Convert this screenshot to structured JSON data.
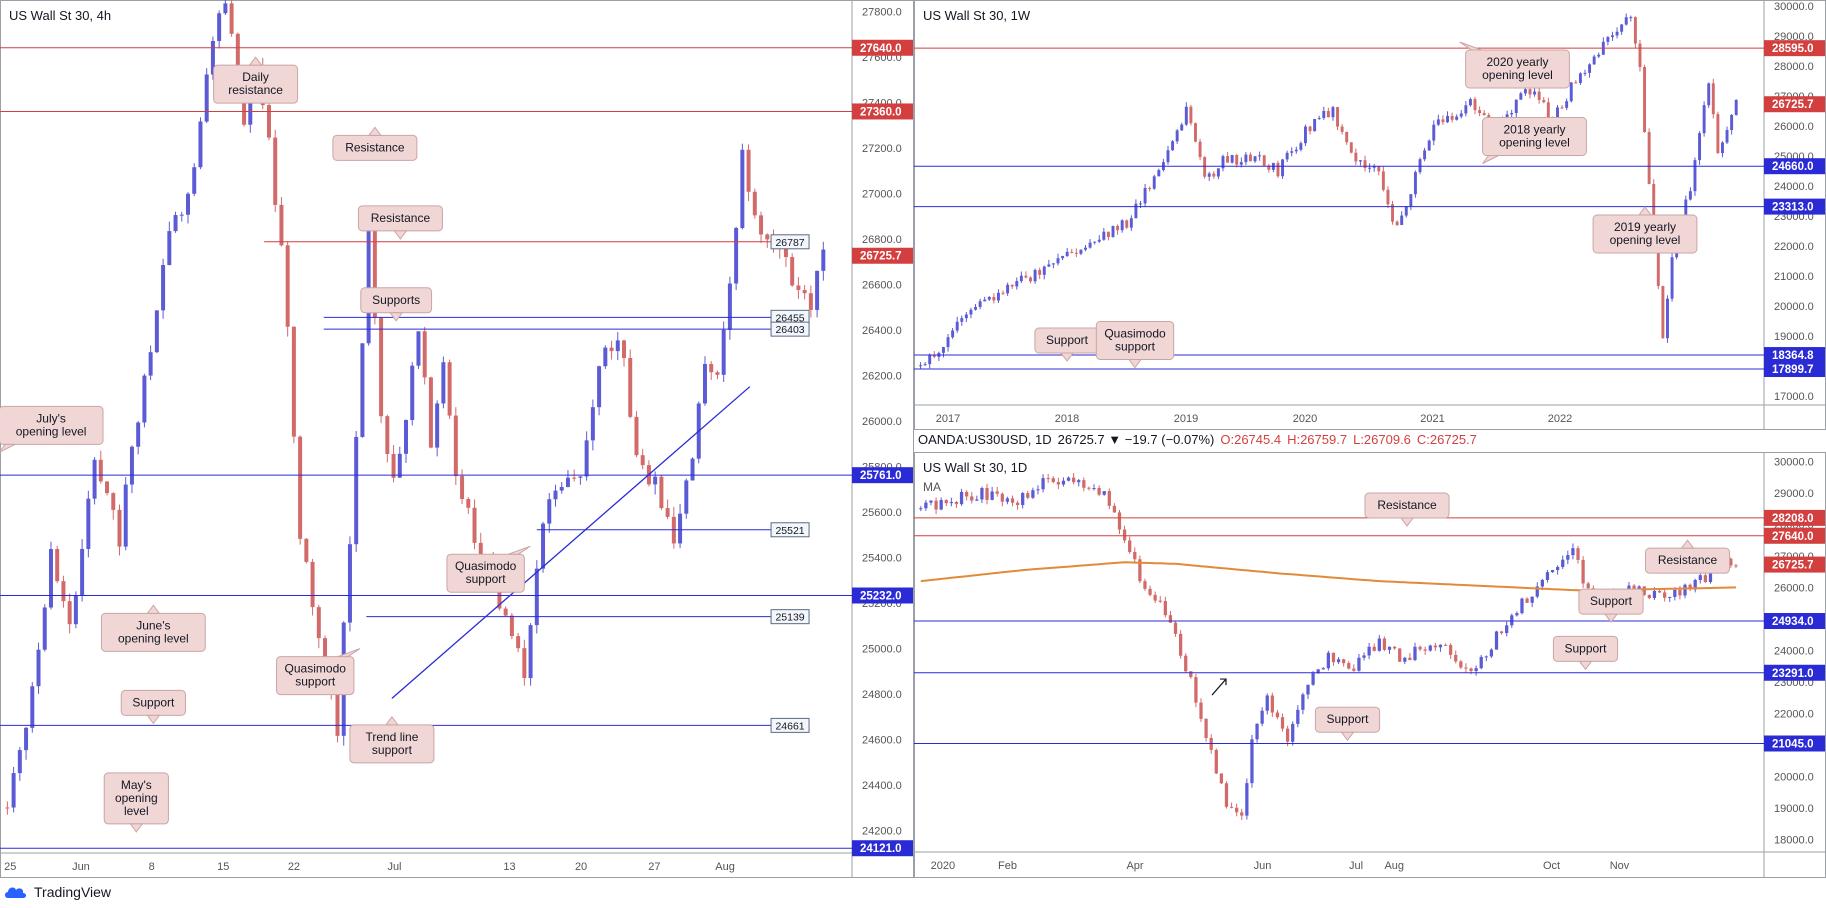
{
  "header_bar": {
    "symbol": "OANDA:US30USD, 1D",
    "change": "26725.7 ▼ −19.7 (−0.07%)",
    "o": "O:26745.4",
    "h": "H:26759.7",
    "l": "L:26709.6",
    "c": "C:26725.7"
  },
  "branding": {
    "name": "TradingView",
    "icon": "tradingview-cloud-icon"
  },
  "colors": {
    "up": "#5b5bd6",
    "down": "#d36a6a",
    "resistance": "#d33f3f",
    "support": "#2b2bd6",
    "ma": "#e08a3a",
    "tag_bg": "#f1d6d6",
    "tag_border": "#caa5a5",
    "neutral_tag": "#f3f6fb"
  },
  "chart_data": [
    {
      "id": "h4",
      "type": "candlestick",
      "title": "US Wall St 30, 4h",
      "ylim": [
        24100,
        27850
      ],
      "y_ticks": [
        24200,
        24400,
        24600,
        24800,
        25000,
        25200,
        25400,
        25600,
        25800,
        26000,
        26200,
        26400,
        26600,
        26800,
        27000,
        27200,
        27400,
        27600,
        27800
      ],
      "x_ticks": [
        "25",
        "Jun",
        "8",
        "15",
        "22",
        "Jul",
        "13",
        "20",
        "27",
        "Aug"
      ],
      "price_waypoints": [
        [
          0,
          24300
        ],
        [
          3,
          24700
        ],
        [
          7,
          25400
        ],
        [
          10,
          25050
        ],
        [
          14,
          25800
        ],
        [
          18,
          25500
        ],
        [
          22,
          26200
        ],
        [
          26,
          26800
        ],
        [
          30,
          27100
        ],
        [
          33,
          27700
        ],
        [
          35,
          27850
        ],
        [
          38,
          27300
        ],
        [
          40,
          27600
        ],
        [
          44,
          26800
        ],
        [
          47,
          25500
        ],
        [
          50,
          25000
        ],
        [
          53,
          24650
        ],
        [
          55,
          25500
        ],
        [
          58,
          26800
        ],
        [
          60,
          26000
        ],
        [
          62,
          25700
        ],
        [
          66,
          26400
        ],
        [
          68,
          25900
        ],
        [
          70,
          26300
        ],
        [
          72,
          25800
        ],
        [
          75,
          25500
        ],
        [
          78,
          25300
        ],
        [
          81,
          25000
        ],
        [
          83,
          24900
        ],
        [
          86,
          25600
        ],
        [
          89,
          25700
        ],
        [
          92,
          25800
        ],
        [
          95,
          26200
        ],
        [
          98,
          26400
        ],
        [
          101,
          25900
        ],
        [
          104,
          25700
        ],
        [
          107,
          25500
        ],
        [
          110,
          25800
        ],
        [
          112,
          26300
        ],
        [
          114,
          26200
        ],
        [
          116,
          26600
        ],
        [
          118,
          27200
        ],
        [
          120,
          26900
        ],
        [
          123,
          26800
        ],
        [
          126,
          26600
        ],
        [
          129,
          26500
        ],
        [
          131,
          26725
        ]
      ],
      "levels": [
        {
          "value": 27640,
          "kind": "resistance",
          "label": "27640.0",
          "style": "badge"
        },
        {
          "value": 27360,
          "kind": "resistance",
          "label": "27360.0",
          "style": "badge"
        },
        {
          "value": 26787,
          "kind": "resistance",
          "label": "26787",
          "style": "box",
          "from": 0.31
        },
        {
          "value": 26725.7,
          "kind": "last",
          "label": "26725.7",
          "style": "badge",
          "noline": true
        },
        {
          "value": 26455,
          "kind": "support",
          "label": "26455",
          "style": "box",
          "from": 0.38
        },
        {
          "value": 26403,
          "kind": "support",
          "label": "26403",
          "style": "box",
          "from": 0.38
        },
        {
          "value": 25761,
          "kind": "support",
          "label": "25761.0",
          "style": "badge"
        },
        {
          "value": 25521,
          "kind": "support",
          "label": "25521",
          "style": "box",
          "from": 0.63
        },
        {
          "value": 25232,
          "kind": "support",
          "label": "25232.0",
          "style": "badge"
        },
        {
          "value": 25139,
          "kind": "support",
          "label": "25139",
          "style": "box",
          "from": 0.43
        },
        {
          "value": 24661,
          "kind": "support",
          "label": "24661",
          "style": "box"
        },
        {
          "value": 24121,
          "kind": "support",
          "label": "24121.0",
          "style": "badge"
        }
      ],
      "trendline": {
        "from": [
          0.46,
          24780
        ],
        "to": [
          0.88,
          26150
        ]
      },
      "annotations": [
        {
          "text": [
            "Daily",
            "resistance"
          ],
          "x": 0.3,
          "y": 27480,
          "pointer": "up"
        },
        {
          "text": [
            "Resistance"
          ],
          "x": 0.44,
          "y": 27200,
          "pointer": "up"
        },
        {
          "text": [
            "Resistance"
          ],
          "x": 0.47,
          "y": 26890,
          "pointer": "down"
        },
        {
          "text": [
            "Supports"
          ],
          "x": 0.465,
          "y": 26530,
          "pointer": "down"
        },
        {
          "text": [
            "July's",
            "opening level"
          ],
          "x": 0.06,
          "y": 25980,
          "pointer": "downleft"
        },
        {
          "text": [
            "Quasimodo",
            "support"
          ],
          "x": 0.57,
          "y": 25330,
          "pointer": "upright"
        },
        {
          "text": [
            "June's",
            "opening level"
          ],
          "x": 0.18,
          "y": 25070,
          "pointer": "up"
        },
        {
          "text": [
            "Quasimodo",
            "support"
          ],
          "x": 0.37,
          "y": 24880,
          "pointer": "upright"
        },
        {
          "text": [
            "Support"
          ],
          "x": 0.18,
          "y": 24760,
          "pointer": "down"
        },
        {
          "text": [
            "Trend line",
            "support"
          ],
          "x": 0.46,
          "y": 24580,
          "pointer": "up"
        },
        {
          "text": [
            "May's",
            "opening",
            "level"
          ],
          "x": 0.16,
          "y": 24340,
          "pointer": "down"
        }
      ]
    },
    {
      "id": "w1",
      "type": "candlestick",
      "title": "US Wall St 30, 1W",
      "ylim": [
        16700,
        30200
      ],
      "y_ticks": [
        17000,
        18000,
        19000,
        20000,
        21000,
        22000,
        23000,
        24000,
        25000,
        26000,
        27000,
        28000,
        29000,
        30000
      ],
      "x_ticks": [
        "2017",
        "2018",
        "2019",
        "2020",
        "2021",
        "2022"
      ],
      "price_waypoints": [
        [
          0,
          18000
        ],
        [
          4,
          18500
        ],
        [
          10,
          19800
        ],
        [
          18,
          20500
        ],
        [
          30,
          21500
        ],
        [
          45,
          22800
        ],
        [
          52,
          24500
        ],
        [
          58,
          26500
        ],
        [
          62,
          24200
        ],
        [
          66,
          24800
        ],
        [
          72,
          25000
        ],
        [
          78,
          24500
        ],
        [
          85,
          26000
        ],
        [
          90,
          26500
        ],
        [
          94,
          25000
        ],
        [
          100,
          24500
        ],
        [
          104,
          22500
        ],
        [
          106,
          23500
        ],
        [
          112,
          26000
        ],
        [
          120,
          26800
        ],
        [
          126,
          25800
        ],
        [
          132,
          27300
        ],
        [
          138,
          26300
        ],
        [
          146,
          28200
        ],
        [
          152,
          29300
        ],
        [
          155,
          29500
        ],
        [
          157,
          28000
        ],
        [
          160,
          22000
        ],
        [
          162,
          19000
        ],
        [
          164,
          21500
        ],
        [
          168,
          24000
        ],
        [
          172,
          27500
        ],
        [
          174,
          25000
        ],
        [
          176,
          26000
        ],
        [
          178,
          26700
        ]
      ],
      "levels": [
        {
          "value": 28595,
          "kind": "resistance",
          "label": "28595.0",
          "style": "badge"
        },
        {
          "value": 26725.7,
          "kind": "last",
          "label": "26725.7",
          "style": "badge",
          "noline": true
        },
        {
          "value": 24660,
          "kind": "support",
          "label": "24660.0",
          "style": "badge"
        },
        {
          "value": 23313,
          "kind": "support",
          "label": "23313.0",
          "style": "badge"
        },
        {
          "value": 18364.8,
          "kind": "support",
          "label": "18364.8",
          "style": "badge"
        },
        {
          "value": 17899.7,
          "kind": "support",
          "label": "17899.7",
          "style": "badge"
        }
      ],
      "annotations": [
        {
          "text": [
            "2020 yearly",
            "opening level"
          ],
          "x": 0.71,
          "y": 27900,
          "pointer": "upleft"
        },
        {
          "text": [
            "2018 yearly",
            "opening level"
          ],
          "x": 0.73,
          "y": 25650,
          "pointer": "downleft"
        },
        {
          "text": [
            "2019 yearly",
            "opening level"
          ],
          "x": 0.86,
          "y": 22400,
          "pointer": "up"
        },
        {
          "text": [
            "Support"
          ],
          "x": 0.18,
          "y": 18850,
          "pointer": "down"
        },
        {
          "text": [
            "Quasimodo",
            "support"
          ],
          "x": 0.26,
          "y": 18850,
          "pointer": "down"
        }
      ]
    },
    {
      "id": "d1",
      "type": "candlestick",
      "title": "US Wall St 30, 1D",
      "subtitle": "MA",
      "ylim": [
        17600,
        30300
      ],
      "y_ticks": [
        18000,
        19000,
        20000,
        21000,
        22000,
        23000,
        24000,
        25000,
        26000,
        27000,
        28000,
        29000,
        30000
      ],
      "x_ticks": [
        "2020",
        "Feb",
        "Apr",
        "Jun",
        "Jul",
        "Aug",
        "Oct",
        "Nov"
      ],
      "price_waypoints": [
        [
          0,
          28500
        ],
        [
          6,
          28800
        ],
        [
          12,
          29000
        ],
        [
          18,
          28700
        ],
        [
          24,
          29300
        ],
        [
          30,
          29400
        ],
        [
          36,
          29000
        ],
        [
          40,
          27500
        ],
        [
          44,
          26000
        ],
        [
          48,
          25300
        ],
        [
          52,
          23500
        ],
        [
          55,
          22000
        ],
        [
          58,
          20000
        ],
        [
          60,
          19200
        ],
        [
          63,
          18700
        ],
        [
          65,
          21000
        ],
        [
          68,
          22500
        ],
        [
          72,
          21000
        ],
        [
          76,
          23000
        ],
        [
          80,
          23800
        ],
        [
          85,
          23500
        ],
        [
          90,
          24300
        ],
        [
          95,
          23700
        ],
        [
          100,
          24300
        ],
        [
          104,
          24000
        ],
        [
          108,
          23200
        ],
        [
          112,
          24200
        ],
        [
          116,
          25200
        ],
        [
          120,
          25800
        ],
        [
          124,
          26500
        ],
        [
          128,
          27400
        ],
        [
          130,
          26200
        ],
        [
          134,
          25500
        ],
        [
          138,
          26000
        ],
        [
          142,
          25800
        ],
        [
          146,
          25600
        ],
        [
          150,
          26000
        ],
        [
          154,
          26300
        ],
        [
          157,
          26900
        ],
        [
          160,
          26725
        ]
      ],
      "ma_waypoints": [
        [
          0,
          26200
        ],
        [
          20,
          26550
        ],
        [
          40,
          26800
        ],
        [
          50,
          26750
        ],
        [
          70,
          26450
        ],
        [
          90,
          26200
        ],
        [
          110,
          26050
        ],
        [
          130,
          25900
        ],
        [
          145,
          25950
        ],
        [
          160,
          26000
        ]
      ],
      "levels": [
        {
          "value": 28208,
          "kind": "resistance",
          "label": "28208.0",
          "style": "badge"
        },
        {
          "value": 27640,
          "kind": "resistance",
          "label": "27640.0",
          "style": "badge"
        },
        {
          "value": 26725.7,
          "kind": "last",
          "label": "26725.7",
          "style": "badge",
          "noline": true
        },
        {
          "value": 24934,
          "kind": "support",
          "label": "24934.0",
          "style": "badge"
        },
        {
          "value": 23291,
          "kind": "support",
          "label": "23291.0",
          "style": "badge"
        },
        {
          "value": 21045,
          "kind": "support",
          "label": "21045.0",
          "style": "badge"
        }
      ],
      "annotations": [
        {
          "text": [
            "Resistance"
          ],
          "x": 0.58,
          "y": 28600,
          "pointer": "down"
        },
        {
          "text": [
            "Resistance"
          ],
          "x": 0.91,
          "y": 26850,
          "pointer": "up"
        },
        {
          "text": [
            "Support"
          ],
          "x": 0.82,
          "y": 25550,
          "pointer": "down"
        },
        {
          "text": [
            "Support"
          ],
          "x": 0.79,
          "y": 24050,
          "pointer": "down"
        },
        {
          "text": [
            "Support"
          ],
          "x": 0.51,
          "y": 21800,
          "pointer": "down"
        }
      ],
      "arrow": {
        "x": 0.36,
        "y": 22900
      }
    }
  ]
}
